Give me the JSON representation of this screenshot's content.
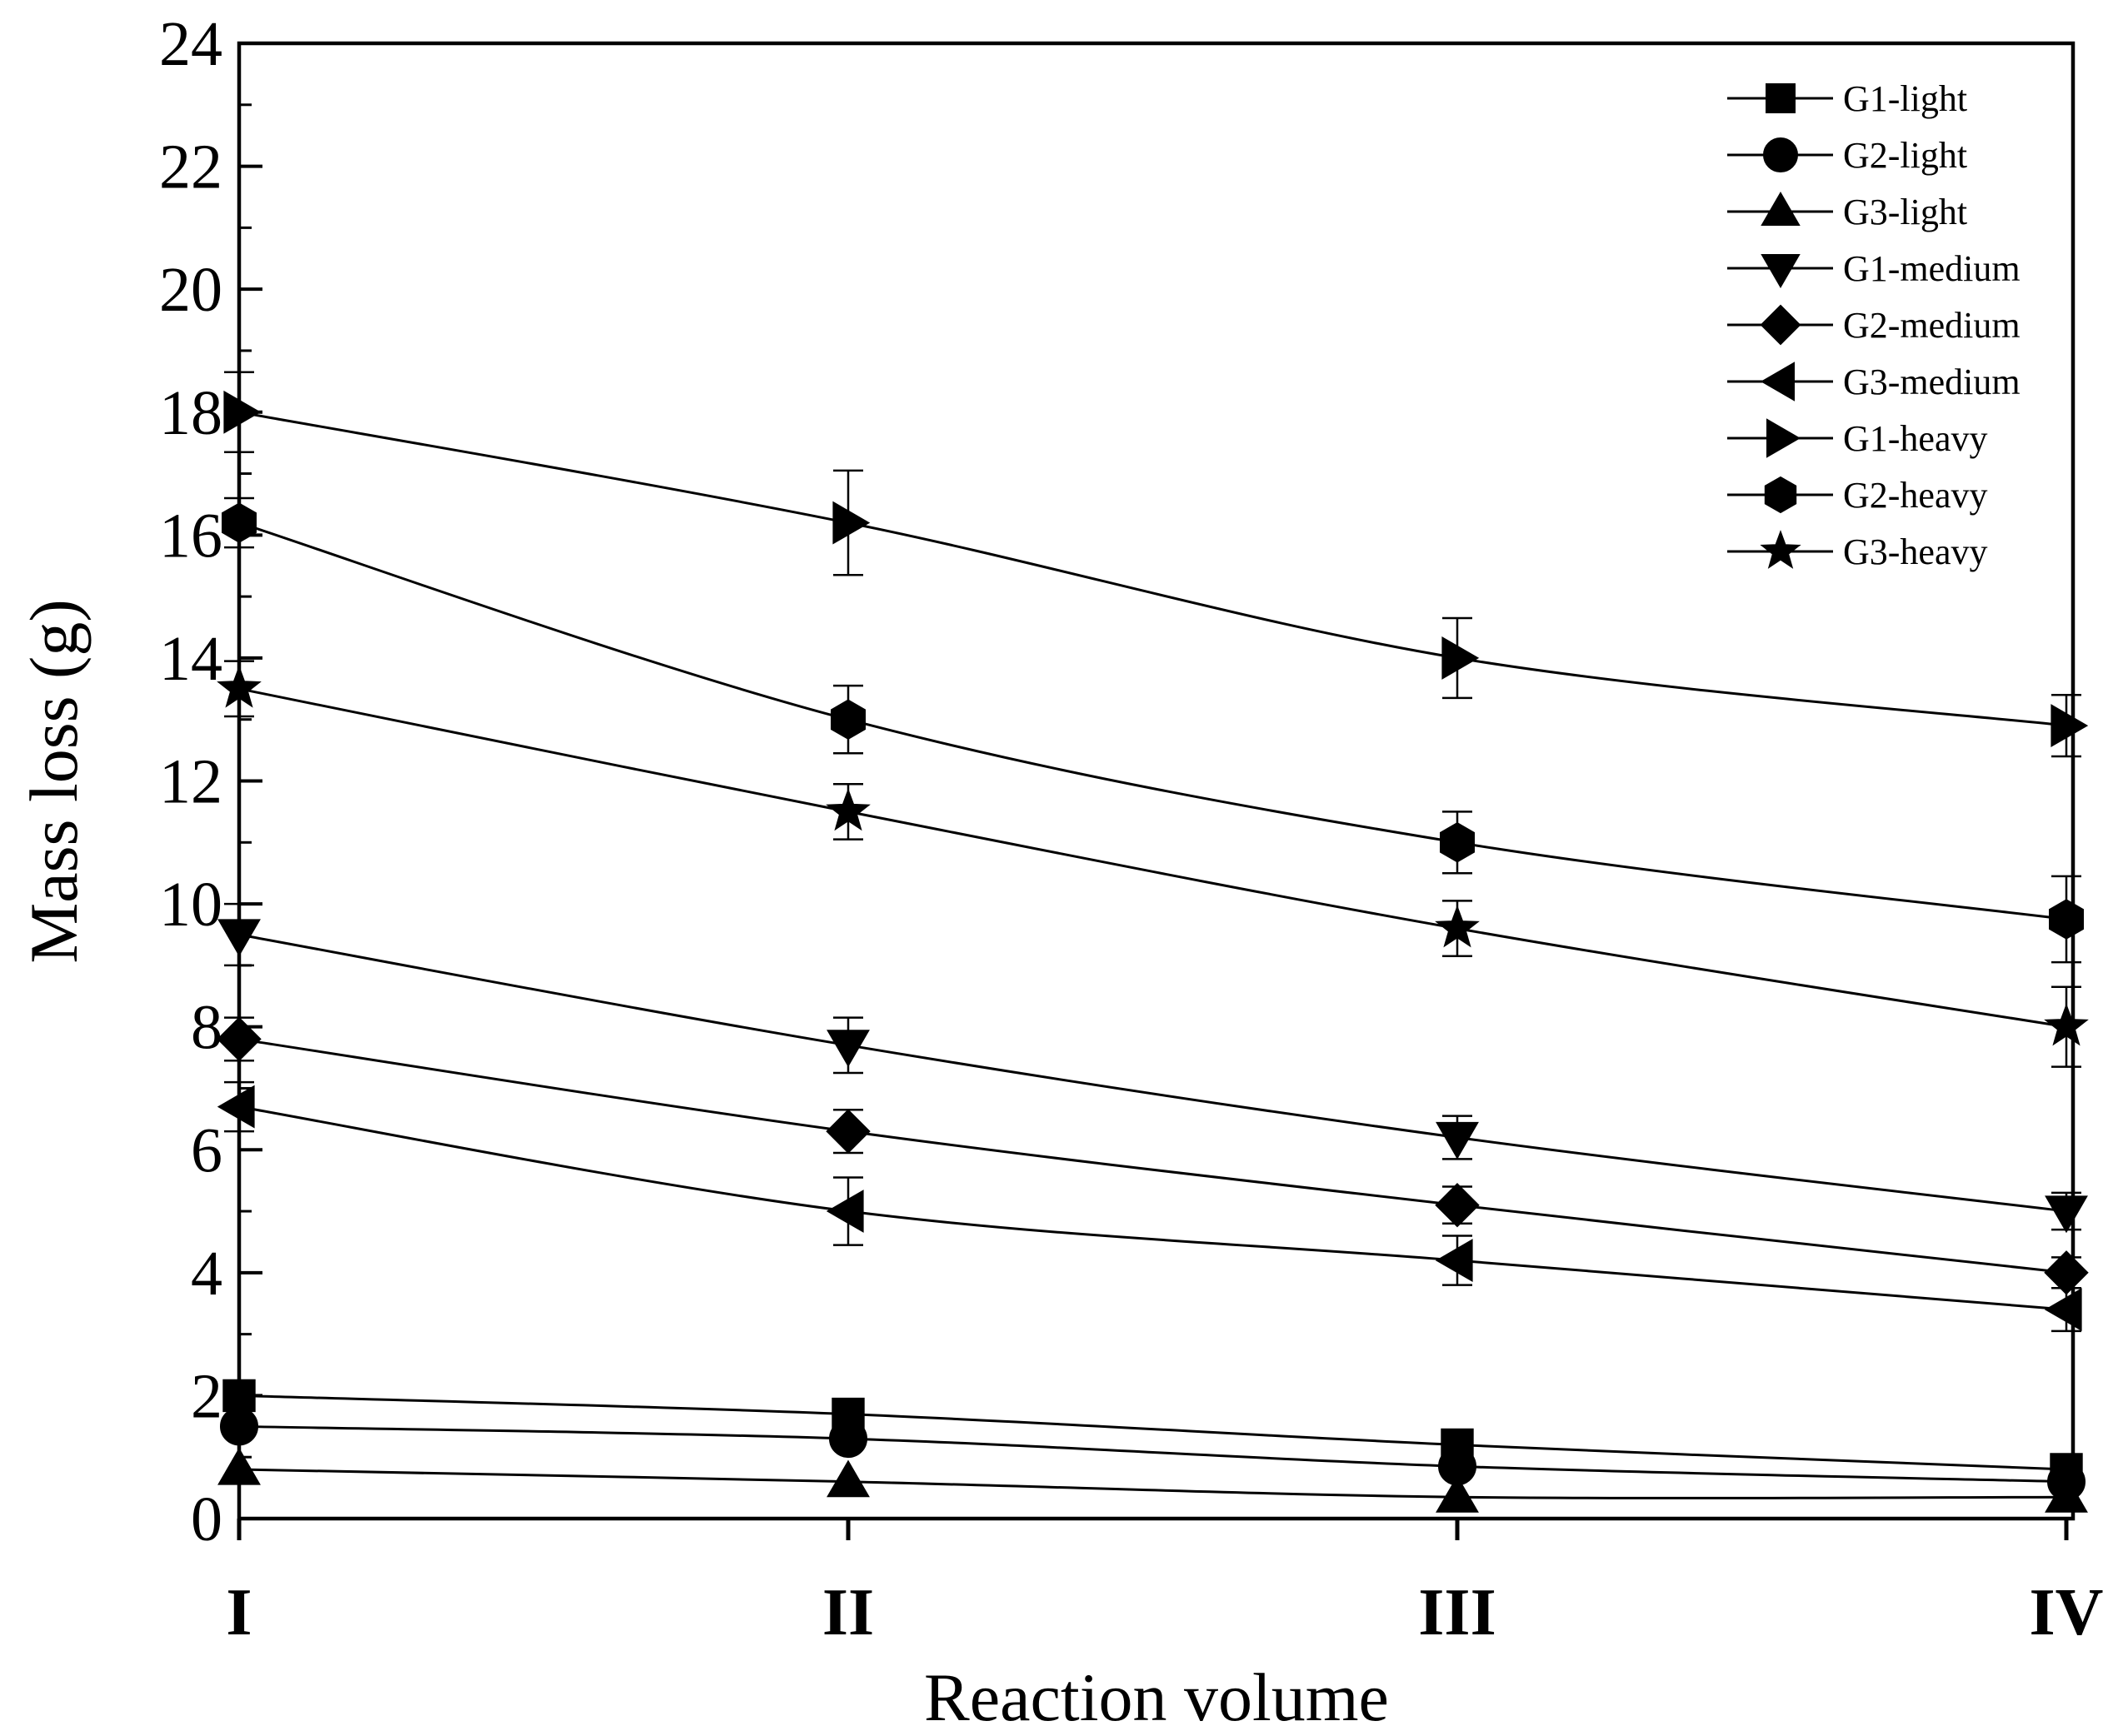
{
  "chart_data": {
    "type": "line",
    "title": "",
    "xlabel": "Reaction volume",
    "ylabel": "Mass loss (g)",
    "categories": [
      "I",
      "II",
      "III",
      "IV"
    ],
    "ylim": [
      0,
      24
    ],
    "yticks": [
      "0",
      "2",
      "4",
      "6",
      "8",
      "10",
      "12",
      "14",
      "16",
      "18",
      "20",
      "22",
      "24"
    ],
    "grid": false,
    "legend_position": "top-right",
    "series": [
      {
        "name": "G1-light",
        "marker": "square",
        "values": [
          2.0,
          1.7,
          1.2,
          0.8
        ],
        "errors": [
          0,
          0,
          0,
          0
        ]
      },
      {
        "name": "G2-light",
        "marker": "circle",
        "values": [
          1.5,
          1.3,
          0.85,
          0.6
        ],
        "errors": [
          0,
          0,
          0,
          0
        ]
      },
      {
        "name": "G3-light",
        "marker": "triangle-up",
        "values": [
          0.8,
          0.6,
          0.35,
          0.35
        ],
        "errors": [
          0,
          0,
          0,
          0
        ]
      },
      {
        "name": "G1-medium",
        "marker": "triangle-down",
        "values": [
          9.5,
          7.7,
          6.2,
          5.0
        ],
        "errors": [
          0.5,
          0.45,
          0.35,
          0.3
        ]
      },
      {
        "name": "G2-medium",
        "marker": "diamond",
        "values": [
          7.8,
          6.3,
          5.1,
          4.0
        ],
        "errors": [
          0.35,
          0.35,
          0.3,
          0.25
        ]
      },
      {
        "name": "G3-medium",
        "marker": "triangle-left",
        "values": [
          6.7,
          5.0,
          4.2,
          3.4
        ],
        "errors": [
          0.4,
          0.55,
          0.4,
          0.35
        ]
      },
      {
        "name": "G1-heavy",
        "marker": "triangle-right",
        "values": [
          18.0,
          16.2,
          14.0,
          12.9
        ],
        "errors": [
          0.65,
          0.85,
          0.65,
          0.5
        ]
      },
      {
        "name": "G2-heavy",
        "marker": "hexagon",
        "values": [
          16.2,
          13.0,
          11.0,
          9.75
        ],
        "errors": [
          0.4,
          0.55,
          0.5,
          0.7
        ]
      },
      {
        "name": "G3-heavy",
        "marker": "star",
        "values": [
          13.5,
          11.5,
          9.6,
          8.0
        ],
        "errors": [
          0.45,
          0.45,
          0.45,
          0.65
        ]
      }
    ]
  }
}
